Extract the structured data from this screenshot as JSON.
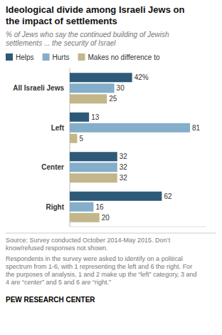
{
  "chart_data": {
    "type": "bar",
    "orientation": "horizontal",
    "title": "Ideological divide among Israeli Jews on\nthe impact of settlements",
    "subtitle": "% of Jews who say the continued building of Jewish\nsettlements ... the security of Israel",
    "categories": [
      "All Israeli Jews",
      "Left",
      "Center",
      "Right"
    ],
    "series": [
      {
        "name": "Helps",
        "color": "#2E5A78",
        "values": [
          42,
          13,
          32,
          62
        ],
        "value_labels": [
          "42%",
          "13",
          "32",
          "62"
        ]
      },
      {
        "name": "Hurts",
        "color": "#85AECA",
        "values": [
          30,
          81,
          32,
          16
        ]
      },
      {
        "name": "Makes no difference to",
        "color": "#C3B68A",
        "values": [
          25,
          5,
          32,
          20
        ]
      }
    ],
    "xlim": [
      0,
      92
    ],
    "tick_labels": false,
    "data_labels": true,
    "grid": false,
    "legend": "top",
    "annotations": [
      "Source: Survey conducted October 2014-May 2015. Don’t\nknow/refused responses not shown.",
      "Respondents in the survey were asked to identify on a political\nspectrum from 1-6, with 1 representing the left and 6 the right. For\nthe purposes of analysis, 1 and 2 make up the “left” category, 3 and\n4 are “center” and 5 and 6 are “right.”",
      "PEW RESEARCH CENTER"
    ]
  }
}
